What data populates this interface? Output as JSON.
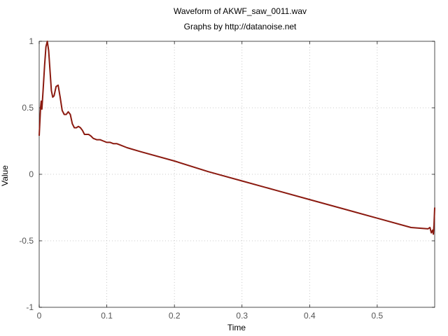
{
  "chart_data": {
    "type": "line",
    "title": "Waveform of AKWF_saw_0011.wav",
    "subtitle": "Graphs by http://datanoise.net",
    "xlabel": "Time",
    "ylabel": "Value",
    "xlim": [
      0,
      0.585
    ],
    "ylim": [
      -1,
      1
    ],
    "xticks": [
      0,
      0.1,
      0.2,
      0.3,
      0.4,
      0.5
    ],
    "xtick_labels": [
      "0",
      "0.1",
      "0.2",
      "0.3",
      "0.4",
      "0.5"
    ],
    "yticks": [
      -1,
      -0.5,
      0,
      0.5,
      1
    ],
    "ytick_labels": [
      "-1",
      "-0.5",
      "0",
      "0.5",
      "1"
    ],
    "grid": true,
    "line_color": "#8b1a10",
    "series": [
      {
        "x": [
          0,
          0.002,
          0.003,
          0.004,
          0.006,
          0.008,
          0.01,
          0.012,
          0.014,
          0.016,
          0.018,
          0.02,
          0.022,
          0.025,
          0.028,
          0.031,
          0.034,
          0.037,
          0.04,
          0.043,
          0.046,
          0.049,
          0.052,
          0.055,
          0.058,
          0.061,
          0.064,
          0.067,
          0.07,
          0.073,
          0.076,
          0.08,
          0.085,
          0.09,
          0.095,
          0.1,
          0.105,
          0.11,
          0.115,
          0.12,
          0.13,
          0.15,
          0.2,
          0.25,
          0.3,
          0.35,
          0.4,
          0.45,
          0.5,
          0.55,
          0.575,
          0.578,
          0.58,
          0.582,
          0.583,
          0.584,
          0.585
        ],
        "y": [
          0.29,
          0.5,
          0.55,
          0.49,
          0.65,
          0.82,
          0.96,
          1.0,
          0.93,
          0.78,
          0.63,
          0.58,
          0.59,
          0.66,
          0.67,
          0.58,
          0.48,
          0.45,
          0.45,
          0.47,
          0.45,
          0.38,
          0.35,
          0.35,
          0.36,
          0.35,
          0.33,
          0.3,
          0.3,
          0.3,
          0.29,
          0.27,
          0.26,
          0.26,
          0.25,
          0.24,
          0.24,
          0.23,
          0.23,
          0.22,
          0.2,
          0.17,
          0.1,
          0.02,
          -0.05,
          -0.12,
          -0.19,
          -0.26,
          -0.33,
          -0.4,
          -0.41,
          -0.4,
          -0.44,
          -0.42,
          -0.45,
          -0.38,
          -0.25
        ]
      }
    ]
  }
}
